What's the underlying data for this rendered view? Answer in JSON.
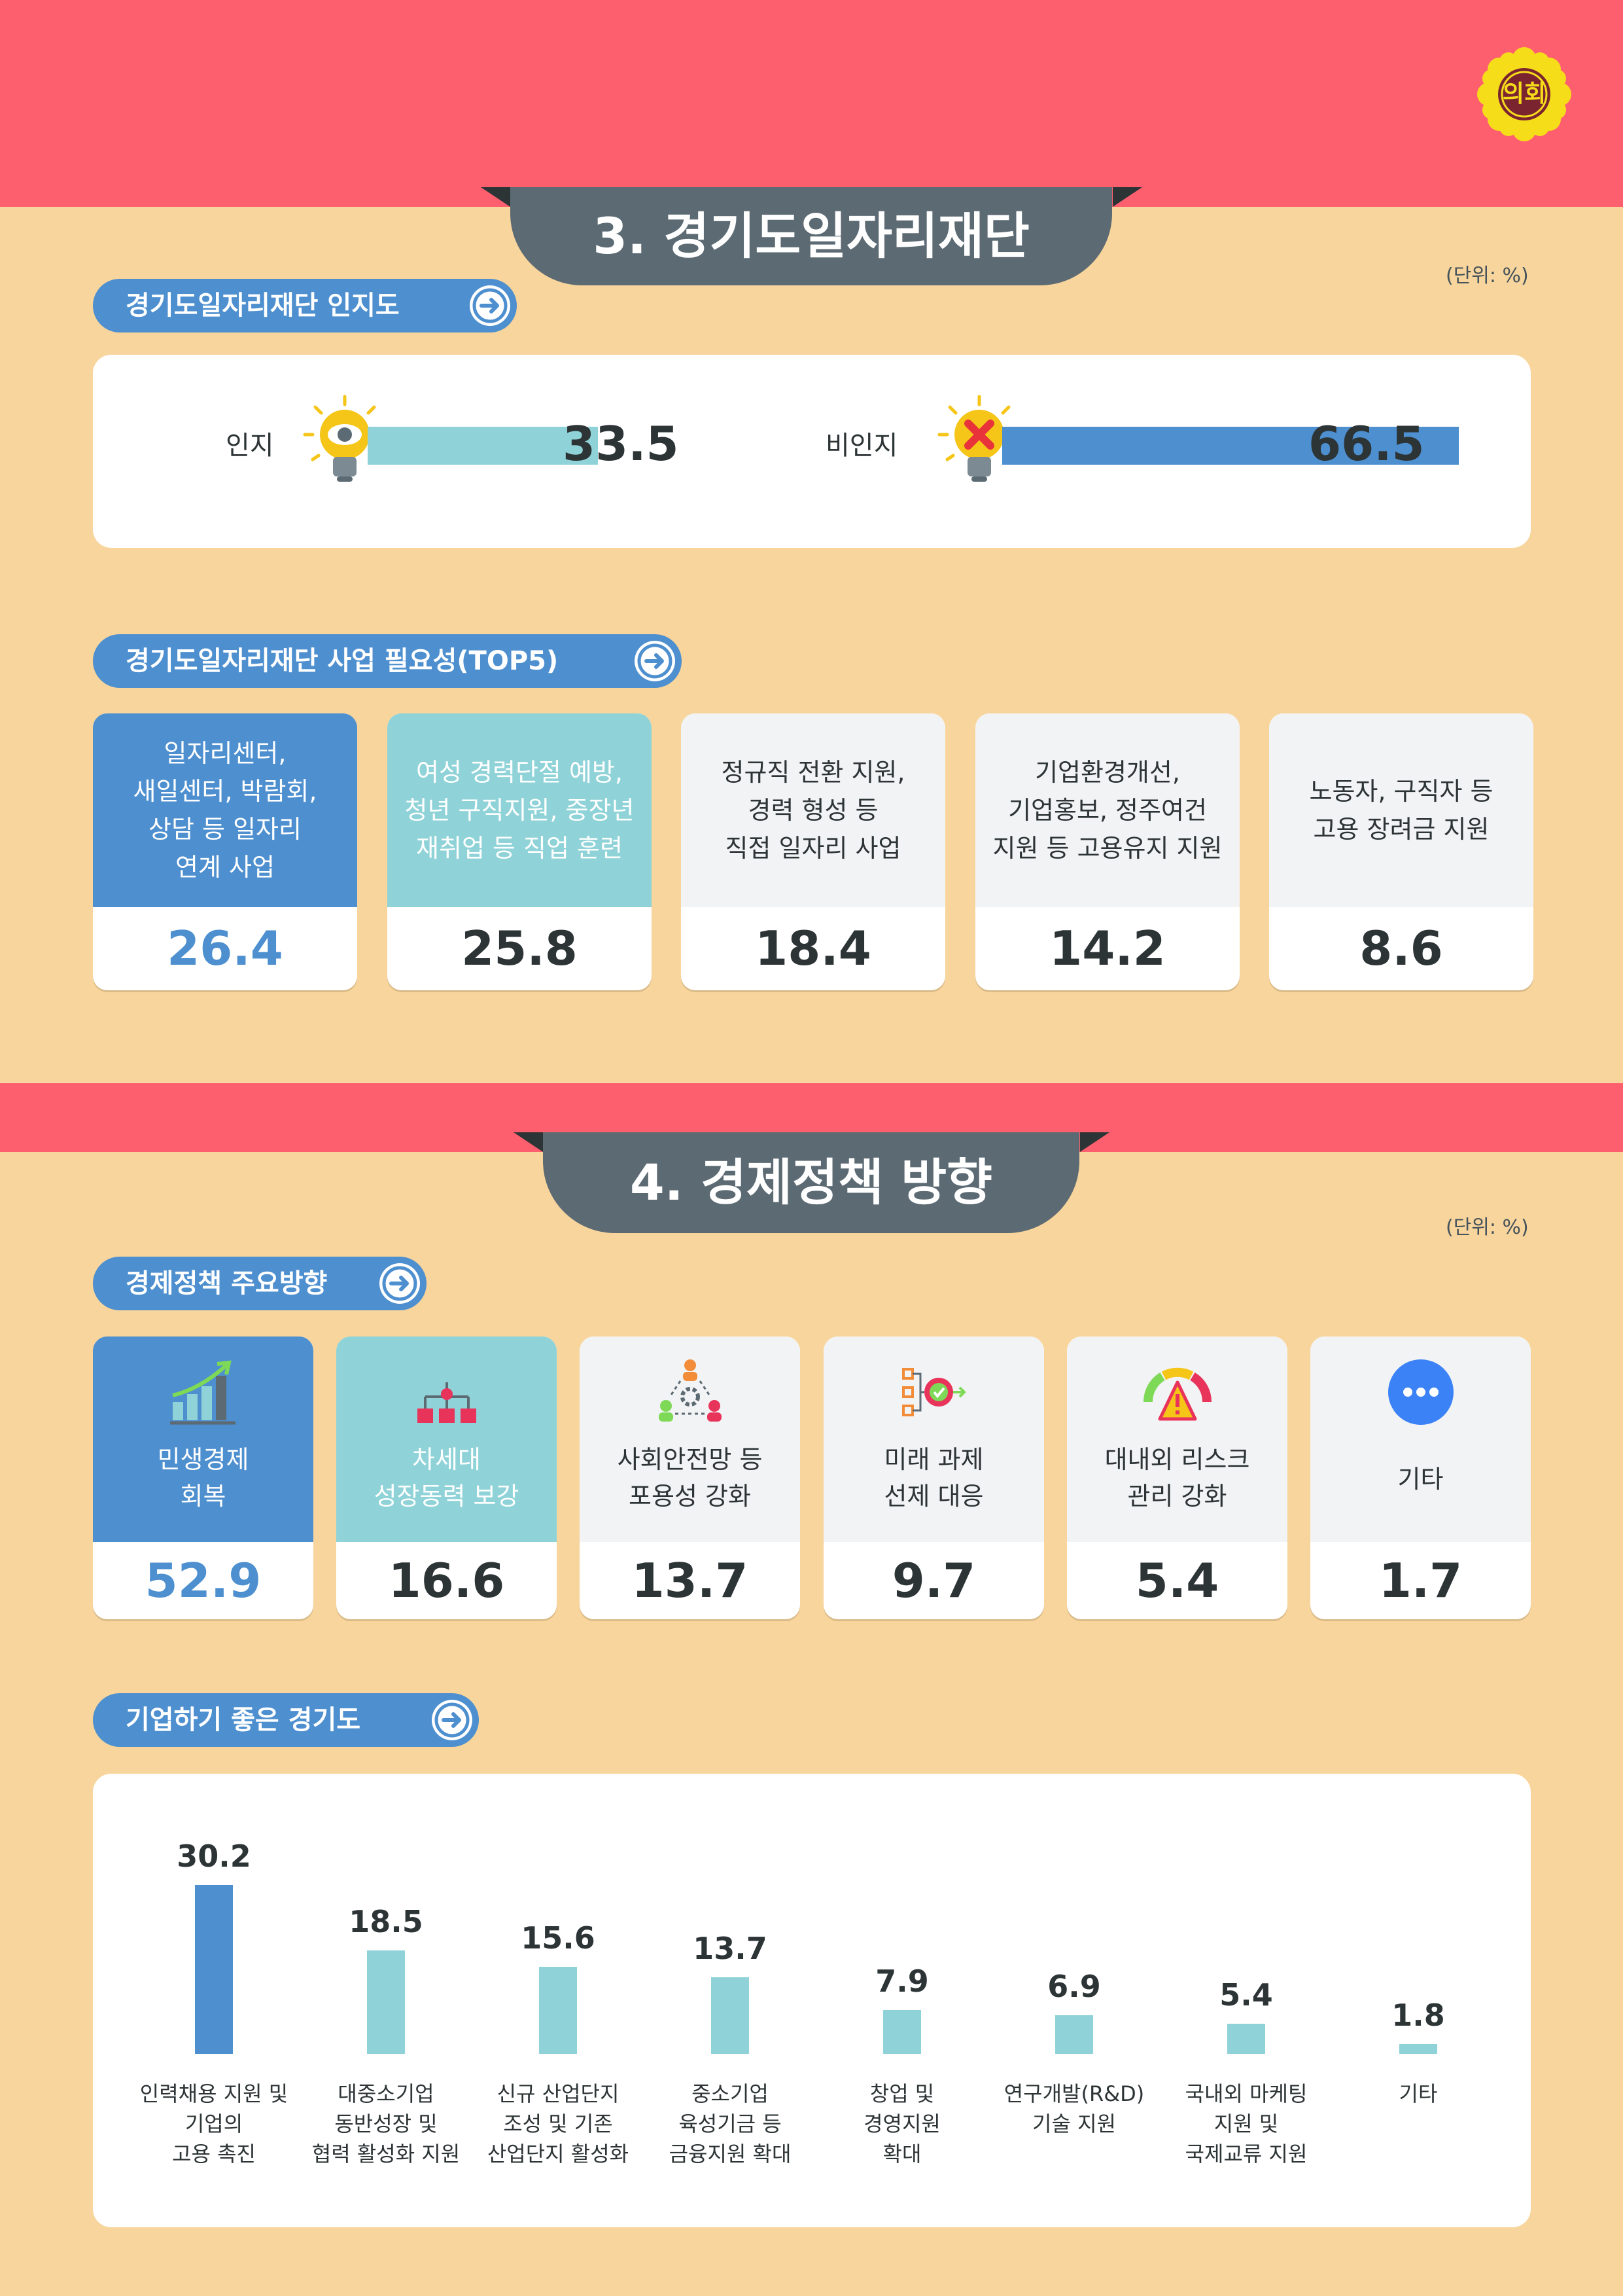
{
  "logo": {
    "text": "의회"
  },
  "section3": {
    "title": "3. 경기도일자리재단",
    "unit": "(단위: %)",
    "awareness": {
      "pill": "경기도일자리재단 인지도",
      "items": [
        {
          "label": "인지",
          "value": 33.5,
          "value_text": "33.5",
          "color": "#8fd3d8",
          "icon": "lightbulb-eye-icon"
        },
        {
          "label": "비인지",
          "value": 66.5,
          "value_text": "66.5",
          "color": "#4d8fcf",
          "icon": "lightbulb-x-icon"
        }
      ]
    },
    "necessity": {
      "pill": "경기도일자리재단 사업 필요성(TOP5)",
      "cards": [
        {
          "text": "일자리센터,\n새일센터, 박람회,\n상담 등 일자리\n연계 사업",
          "value": "26.4",
          "theme": "blue"
        },
        {
          "text": "여성 경력단절 예방,\n청년 구직지원, 중장년\n재취업 등 직업 훈련",
          "value": "25.8",
          "theme": "teal"
        },
        {
          "text": "정규직 전환 지원,\n경력 형성 등\n직접 일자리 사업",
          "value": "18.4",
          "theme": "gray"
        },
        {
          "text": "기업환경개선,\n기업홍보, 정주여건\n지원 등 고용유지 지원",
          "value": "14.2",
          "theme": "gray"
        },
        {
          "text": "노동자, 구직자 등\n고용 장려금 지원",
          "value": "8.6",
          "theme": "gray"
        }
      ]
    }
  },
  "section4": {
    "title": "4. 경제정책 방향",
    "unit": "(단위: %)",
    "directions": {
      "pill": "경제정책 주요방향",
      "cards": [
        {
          "text": "민생경제\n회복",
          "value": "52.9",
          "theme": "blue",
          "icon": "growth-chart-icon"
        },
        {
          "text": "차세대\n성장동력 보강",
          "value": "16.6",
          "theme": "teal",
          "icon": "hierarchy-icon"
        },
        {
          "text": "사회안전망 등\n포용성 강화",
          "value": "13.7",
          "theme": "gray",
          "icon": "people-network-icon"
        },
        {
          "text": "미래 과제\n선제 대응",
          "value": "9.7",
          "theme": "gray",
          "icon": "target-flow-icon"
        },
        {
          "text": "대내외 리스크\n관리 강화",
          "value": "5.4",
          "theme": "gray",
          "icon": "risk-gauge-icon"
        },
        {
          "text": "기타",
          "value": "1.7",
          "theme": "gray",
          "icon": "more-dots-icon"
        }
      ]
    },
    "business": {
      "pill": "기업하기 좋은 경기도"
    }
  },
  "colors": {
    "blue": "#4d8fcf",
    "teal": "#8fd3d8",
    "gray_card": "#f2f3f4",
    "pink": "#fe5f6f",
    "bg": "#f8d59c",
    "dark_tab": "#5c6a73"
  },
  "chart_data": {
    "type": "bar",
    "categories": [
      "인력채용 지원 및\n기업의\n고용 촉진",
      "대중소기업\n동반성장 및\n협력 활성화 지원",
      "신규 산업단지\n조성 및 기존\n산업단지 활성화",
      "중소기업\n육성기금 등\n금융지원 확대",
      "창업 및\n경영지원\n확대",
      "연구개발(R&D)\n기술 지원",
      "국내외 마케팅\n지원 및\n국제교류 지원",
      "기타"
    ],
    "values": [
      30.2,
      18.5,
      15.6,
      13.7,
      7.9,
      6.9,
      5.4,
      1.8
    ],
    "value_labels": [
      "30.2",
      "18.5",
      "15.6",
      "13.7",
      "7.9",
      "6.9",
      "5.4",
      "1.8"
    ],
    "highlight_color": "#4d8fcf",
    "bar_color": "#8fd3d8",
    "title": "",
    "xlabel": "",
    "ylabel": "",
    "ylim": [
      0,
      30.2
    ],
    "grid": false
  }
}
